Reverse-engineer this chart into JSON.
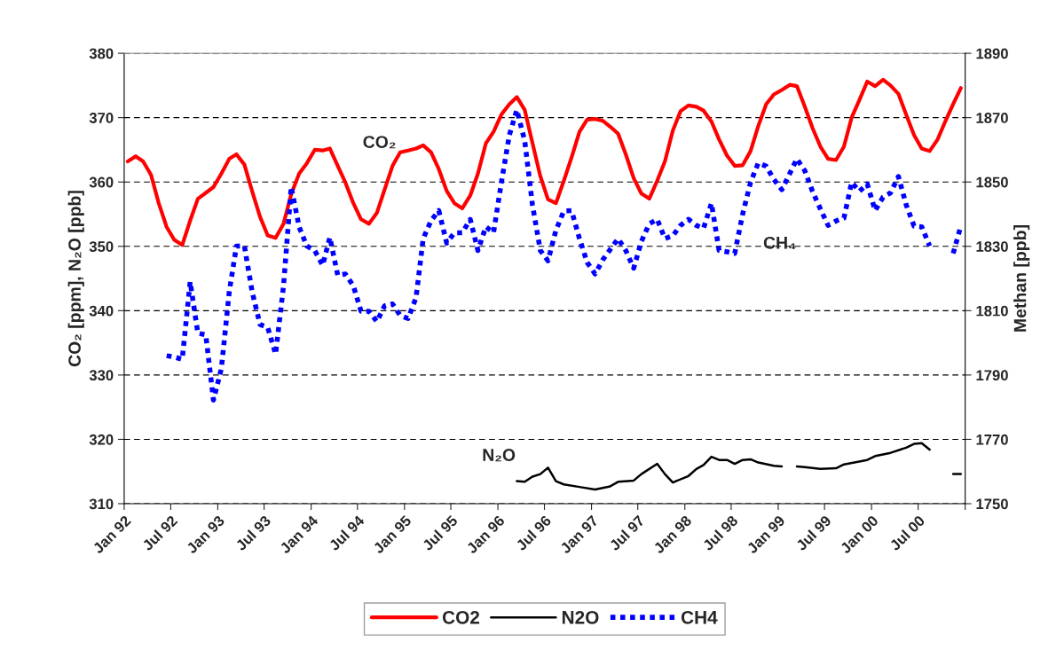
{
  "chart_data": {
    "type": "line",
    "xlabel": null,
    "ylabel": "CO₂ [ppm], N₂O [ppb]",
    "y2label": "Methan [ppb]",
    "x": [
      "1992-01-15",
      "1992-02-15",
      "1992-03-15",
      "1992-04-15",
      "1992-05-15",
      "1992-06-15",
      "1992-07-15",
      "1992-08-15",
      "1992-09-15",
      "1992-10-15",
      "1992-11-15",
      "1992-12-15",
      "1993-01-15",
      "1993-02-15",
      "1993-03-15",
      "1993-04-15",
      "1993-05-15",
      "1993-06-15",
      "1993-07-15",
      "1993-08-15",
      "1993-09-15",
      "1993-10-15",
      "1993-11-15",
      "1993-12-15",
      "1994-01-15",
      "1994-02-15",
      "1994-03-15",
      "1994-04-15",
      "1994-05-15",
      "1994-06-15",
      "1994-07-15",
      "1994-08-15",
      "1994-09-15",
      "1994-10-15",
      "1994-11-15",
      "1994-12-15",
      "1995-01-15",
      "1995-02-15",
      "1995-03-15",
      "1995-04-15",
      "1995-05-15",
      "1995-06-15",
      "1995-07-15",
      "1995-08-15",
      "1995-09-15",
      "1995-10-15",
      "1995-11-15",
      "1995-12-15",
      "1996-01-15",
      "1996-02-15",
      "1996-03-15",
      "1996-04-15",
      "1996-05-15",
      "1996-06-15",
      "1996-07-15",
      "1996-08-15",
      "1996-09-15",
      "1996-10-15",
      "1996-11-15",
      "1996-12-15",
      "1997-01-15",
      "1997-02-15",
      "1997-03-15",
      "1997-04-15",
      "1997-05-15",
      "1997-06-15",
      "1997-07-15",
      "1997-08-15",
      "1997-09-15",
      "1997-10-15",
      "1997-11-15",
      "1997-12-15",
      "1998-01-15",
      "1998-02-15",
      "1998-03-15",
      "1998-04-15",
      "1998-05-15",
      "1998-06-15",
      "1998-07-15",
      "1998-08-15",
      "1998-09-15",
      "1998-10-15",
      "1998-11-15",
      "1998-12-15",
      "1999-01-15",
      "1999-02-15",
      "1999-03-15",
      "1999-04-15",
      "1999-05-15",
      "1999-06-15",
      "1999-07-15",
      "1999-08-15",
      "1999-09-15",
      "1999-10-15",
      "1999-11-15",
      "1999-12-15",
      "2000-01-15",
      "2000-02-15",
      "2000-03-15",
      "2000-04-15",
      "2000-05-15",
      "2000-06-15",
      "2000-07-15",
      "2000-08-15",
      "2000-09-15",
      "2000-10-15",
      "2000-11-15",
      "2000-12-15"
    ],
    "series": [
      {
        "name": "CO2",
        "color": "#ff0000",
        "line_style": "solid",
        "values": [
          363.2,
          364.0,
          363.2,
          361.1,
          356.7,
          353.0,
          351.0,
          350.2,
          354.0,
          357.4,
          358.3,
          359.2,
          361.3,
          363.6,
          364.3,
          362.7,
          358.6,
          354.6,
          351.7,
          351.3,
          353.5,
          358.1,
          361.3,
          362.9,
          365.0,
          364.9,
          365.2,
          362.5,
          359.9,
          356.7,
          354.2,
          353.5,
          355.2,
          358.8,
          362.5,
          364.6,
          364.9,
          365.2,
          365.7,
          364.6,
          362.0,
          358.6,
          356.7,
          355.9,
          357.9,
          361.3,
          366.0,
          367.8,
          370.5,
          372.1,
          373.2,
          371.2,
          366.1,
          360.9,
          357.3,
          356.7,
          360.2,
          363.8,
          367.8,
          369.7,
          369.8,
          369.5,
          368.6,
          367.5,
          364.3,
          360.6,
          358.2,
          357.4,
          360.2,
          363.2,
          368.0,
          371.0,
          371.9,
          371.7,
          371.1,
          369.4,
          366.6,
          364.1,
          362.5,
          362.6,
          364.8,
          368.7,
          372.1,
          373.6,
          374.3,
          375.1,
          374.9,
          371.7,
          368.4,
          365.5,
          363.6,
          363.4,
          365.5,
          370.0,
          372.8,
          375.6,
          374.9,
          375.9,
          375.0,
          373.7,
          370.5,
          367.3,
          365.2,
          364.8,
          366.6,
          369.4,
          372.1,
          374.6
        ]
      },
      {
        "name": "N2O",
        "color": "#000000",
        "line_style": "solid",
        "x": [
          "1996-03-15",
          "1996-04-15",
          "1996-05-15",
          "1996-06-15",
          "1996-07-15",
          "1996-08-15",
          "1996-09-15",
          "1996-11-15",
          "1997-01-15",
          "1997-03-15",
          "1997-04-15",
          "1997-06-15",
          "1997-07-15",
          "1997-09-15",
          "1997-10-15",
          "1997-11-15",
          "1998-01-15",
          "1998-02-15",
          "1998-03-15",
          "1998-04-15",
          "1998-05-15",
          "1998-06-15",
          "1998-07-15",
          "1998-08-15",
          "1998-09-15",
          "1998-10-15",
          "1998-12-15",
          "1999-01-15",
          "1999-02-15",
          "1999-03-15",
          "1999-04-15",
          "1999-06-15",
          "1999-08-15",
          "1999-09-15",
          "1999-12-15",
          "2000-01-15",
          "2000-03-15",
          "2000-05-15",
          "2000-06-15",
          "2000-07-15",
          "2000-08-15",
          "2000-09-15",
          "2000-11-15",
          "2000-12-15"
        ],
        "values": [
          313.5,
          313.4,
          314.2,
          314.6,
          315.6,
          313.5,
          313.0,
          312.6,
          312.2,
          312.7,
          313.4,
          313.6,
          314.6,
          316.2,
          314.6,
          313.3,
          314.3,
          315.4,
          316.0,
          317.3,
          316.8,
          316.8,
          316.2,
          316.8,
          316.9,
          316.4,
          315.9,
          315.8,
          null,
          315.8,
          315.7,
          315.4,
          315.5,
          316.1,
          316.8,
          317.4,
          317.9,
          318.7,
          319.3,
          319.4,
          318.4,
          null,
          314.6,
          314.6
        ]
      },
      {
        "name": "CH4",
        "color": "#0000ff",
        "line_style": "dotted",
        "axis": "y2",
        "values": [
          null,
          null,
          null,
          null,
          null,
          1796.0,
          1795.6,
          1794.9,
          1819.0,
          1803.0,
          1802.5,
          1782.2,
          1792,
          1816,
          1830.1,
          1830.1,
          1816,
          1805.7,
          1804.8,
          1796.5,
          1817.7,
          1848.5,
          1836,
          1830.1,
          1828.7,
          1824.1,
          1832.8,
          1821,
          1821.4,
          1817.7,
          1809.8,
          1809.8,
          1806.6,
          1811.5,
          1812.1,
          1808.5,
          1807.6,
          1814,
          1832.4,
          1838,
          1841.1,
          1831,
          1834.2,
          1834.2,
          1838.4,
          1828.7,
          1836.1,
          1834.2,
          1850,
          1864.6,
          1872.4,
          1862.8,
          1843,
          1828.7,
          1825.5,
          1835,
          1841,
          1841.1,
          1832.4,
          1825.0,
          1821.4,
          1825.9,
          1829,
          1832.4,
          1828.7,
          1823.2,
          1831.5,
          1837.0,
          1838.4,
          1832.4,
          1833.3,
          1836.5,
          1838.4,
          1836.5,
          1835.6,
          1843.4,
          1828.7,
          1828.3,
          1827.8,
          1840,
          1849.9,
          1855.9,
          1854.9,
          1850.8,
          1847.6,
          1852.6,
          1857.2,
          1853.5,
          1847.1,
          1841.6,
          1836.5,
          1837.9,
          1838.8,
          1849.9,
          1847.1,
          1849.4,
          1841.1,
          1845.3,
          1846.6,
          1851.7,
          1843,
          1836.3,
          1836.1,
          1830.1,
          null,
          null,
          1827.8,
          1836.3
        ]
      }
    ],
    "xlim": [
      "1992-01",
      "2001-01"
    ],
    "xticks": [
      {
        "value": "1992-01",
        "label": "Jan 92"
      },
      {
        "value": "1992-07",
        "label": "Jul 92"
      },
      {
        "value": "1993-01",
        "label": "Jan 93"
      },
      {
        "value": "1993-07",
        "label": "Jul 93"
      },
      {
        "value": "1994-01",
        "label": "Jan 94"
      },
      {
        "value": "1994-07",
        "label": "Jul 94"
      },
      {
        "value": "1995-01",
        "label": "Jan 95"
      },
      {
        "value": "1995-07",
        "label": "Jul 95"
      },
      {
        "value": "1996-01",
        "label": "Jan 96"
      },
      {
        "value": "1996-07",
        "label": "Jul 96"
      },
      {
        "value": "1997-01",
        "label": "Jan 97"
      },
      {
        "value": "1997-07",
        "label": "Jul 97"
      },
      {
        "value": "1998-01",
        "label": "Jan 98"
      },
      {
        "value": "1998-07",
        "label": "Jul 98"
      },
      {
        "value": "1999-01",
        "label": "Jan 99"
      },
      {
        "value": "1999-07",
        "label": "Jul 99"
      },
      {
        "value": "2000-01",
        "label": "Jan 00"
      },
      {
        "value": "2000-07",
        "label": "Jul 00"
      },
      {
        "value": "2001-01",
        "label": null
      }
    ],
    "ylim": [
      310,
      380
    ],
    "yticks": [
      310,
      320,
      330,
      340,
      350,
      360,
      370,
      380
    ],
    "y2lim": [
      1750,
      1890
    ],
    "y2ticks": [
      1750,
      1770,
      1790,
      1810,
      1830,
      1850,
      1870,
      1890
    ],
    "grid": "y",
    "legend": "bottom",
    "marker": "none",
    "annotations": [
      "CO₂",
      "N₂O",
      "CH₄"
    ]
  }
}
